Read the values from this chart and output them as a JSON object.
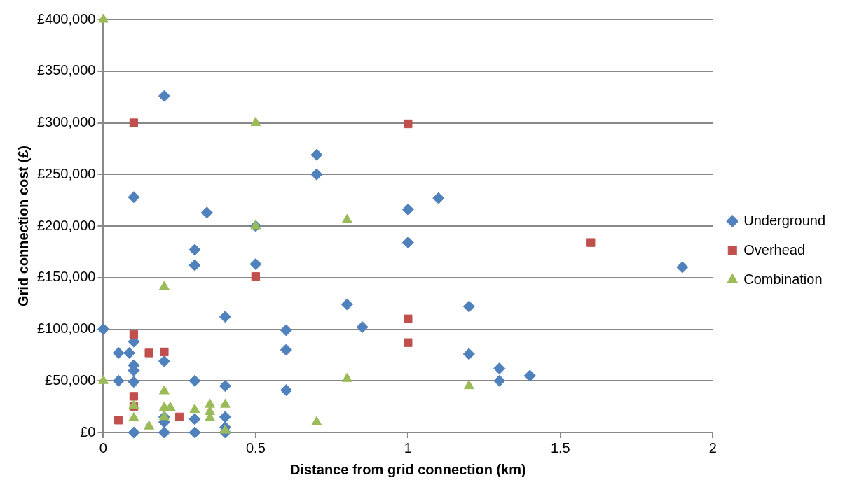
{
  "chart_data": {
    "type": "scatter",
    "xlabel": "Distance from grid connection (km)",
    "ylabel": "Grid connection cost (£)",
    "xlim": [
      0,
      2
    ],
    "xticks": [
      0,
      0.5,
      1,
      1.5,
      2
    ],
    "ylim": [
      0,
      400000
    ],
    "yticks": [
      {
        "value": 0,
        "label": "£0"
      },
      {
        "value": 50000,
        "label": "£50,000"
      },
      {
        "value": 100000,
        "label": "£100,000"
      },
      {
        "value": 150000,
        "label": "£150,000"
      },
      {
        "value": 200000,
        "label": "£200,000"
      },
      {
        "value": 250000,
        "label": "£250,000"
      },
      {
        "value": 300000,
        "label": "£300,000"
      },
      {
        "value": 350000,
        "label": "£350,000"
      },
      {
        "value": 400000,
        "label": "£400,000"
      }
    ],
    "grid": "y",
    "legend": "right",
    "series": [
      {
        "name": "Underground",
        "color": "#4f81bd",
        "marker": "diamond",
        "x": [
          0,
          0.05,
          0.085,
          0.1,
          0.1,
          0.1,
          0.05,
          0.1,
          0.2,
          0.3,
          0.4,
          0.4,
          0.6,
          0.6,
          0.6,
          0.1,
          0.2,
          0.2,
          0.2,
          0.3,
          0.3,
          0.4,
          0.4,
          0.4,
          0.2,
          0.1,
          0.34,
          0.3,
          0.3,
          0.5,
          0.5,
          0.7,
          0.7,
          1,
          1,
          1.1,
          0.8,
          0.85,
          1.2,
          1.2,
          1.3,
          1.3,
          1.4,
          1.9
        ],
        "values": [
          100000,
          77000,
          77000,
          88000,
          65000,
          60000,
          50000,
          49000,
          69000,
          50000,
          112000,
          45000,
          99000,
          80000,
          41000,
          0,
          0,
          15000,
          10000,
          0,
          13000,
          15000,
          5000,
          0,
          326000,
          228000,
          213000,
          177000,
          162000,
          200000,
          163000,
          269000,
          250000,
          216000,
          184000,
          227000,
          124000,
          102000,
          122000,
          76000,
          62000,
          50000,
          55000,
          160000
        ]
      },
      {
        "name": "Overhead",
        "color": "#c0504d",
        "marker": "square",
        "x": [
          0.1,
          1,
          1.6,
          0.5,
          1,
          1,
          0.1,
          0.15,
          0.2,
          0.1,
          0.1,
          0.05,
          0.25
        ],
        "values": [
          300000,
          299000,
          184000,
          151000,
          110000,
          87000,
          95000,
          77000,
          78000,
          35000,
          25000,
          12000,
          15000
        ]
      },
      {
        "name": "Combination",
        "color": "#9bbb59",
        "marker": "triangle",
        "x": [
          0,
          0.5,
          0.5,
          0.8,
          0.2,
          0.8,
          1.2,
          0.7,
          0,
          0.1,
          0.1,
          0.15,
          0.2,
          0.2,
          0.22,
          0.2,
          0.3,
          0.35,
          0.35,
          0.35,
          0.4,
          0.4
        ],
        "values": [
          400000,
          300000,
          200000,
          206000,
          141000,
          52000,
          45000,
          10000,
          50000,
          26000,
          14000,
          6000,
          40000,
          24000,
          24000,
          15000,
          22000,
          27000,
          14000,
          20000,
          27000,
          2000
        ]
      }
    ]
  }
}
